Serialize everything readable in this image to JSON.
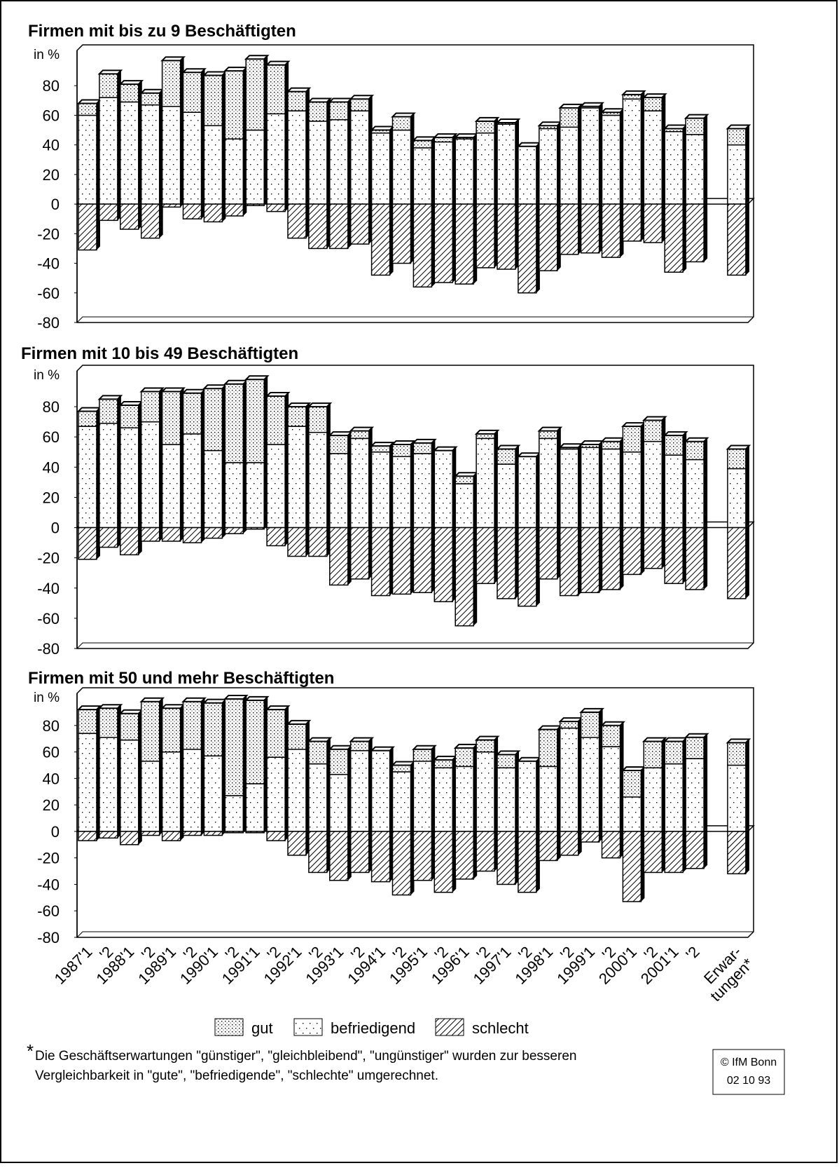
{
  "chart_data": [
    {
      "type": "bar",
      "stacked": true,
      "title": "Firmen mit bis zu 9 Beschäftigten",
      "ylabel": "in %",
      "ylim": [
        -80,
        100
      ],
      "yticks": [
        -80,
        -60,
        -40,
        -20,
        0,
        20,
        40,
        60,
        80
      ],
      "series": [
        {
          "pattern": "sparse-dots",
          "values": [
            60,
            72,
            69,
            67,
            66,
            62,
            53,
            44,
            50,
            61,
            63,
            56,
            57,
            63,
            48,
            50,
            38,
            42,
            44,
            48,
            54,
            39,
            51,
            52,
            65,
            60,
            71,
            63,
            49,
            47,
            40
          ]
        },
        {
          "pattern": "dense-dots",
          "values": [
            8,
            16,
            12,
            8,
            31,
            27,
            34,
            46,
            48,
            33,
            13,
            13,
            12,
            8,
            2,
            9,
            5,
            3,
            1,
            8,
            1,
            0,
            2,
            13,
            1,
            2,
            3,
            9,
            2,
            11,
            11
          ]
        },
        {
          "pattern": "hatch",
          "values": [
            -31,
            -11,
            -17,
            -23,
            -2,
            -10,
            -12,
            -8,
            -1,
            -5,
            -23,
            -30,
            -30,
            -27,
            -48,
            -40,
            -56,
            -53,
            -54,
            -43,
            -44,
            -60,
            -45,
            -34,
            -33,
            -36,
            -25,
            -26,
            -46,
            -39,
            -48
          ]
        }
      ]
    },
    {
      "type": "bar",
      "stacked": true,
      "title": "Firmen mit 10 bis 49 Beschäftigten",
      "ylabel": "in %",
      "ylim": [
        -80,
        100
      ],
      "yticks": [
        -80,
        -60,
        -40,
        -20,
        0,
        20,
        40,
        60,
        80
      ],
      "series": [
        {
          "pattern": "sparse-dots",
          "values": [
            67,
            69,
            66,
            70,
            55,
            62,
            51,
            43,
            43,
            55,
            67,
            63,
            49,
            59,
            50,
            47,
            49,
            51,
            29,
            59,
            42,
            47,
            59,
            52,
            53,
            52,
            50,
            57,
            48,
            45,
            39
          ]
        },
        {
          "pattern": "dense-dots",
          "values": [
            10,
            16,
            15,
            20,
            35,
            27,
            41,
            52,
            55,
            32,
            13,
            17,
            12,
            5,
            4,
            8,
            7,
            0,
            5,
            3,
            10,
            0,
            5,
            1,
            2,
            5,
            17,
            14,
            13,
            12,
            13
          ]
        },
        {
          "pattern": "hatch",
          "values": [
            -21,
            -13,
            -18,
            -9,
            -9,
            -10,
            -7,
            -4,
            -1,
            -12,
            -19,
            -19,
            -38,
            -34,
            -45,
            -44,
            -43,
            -49,
            -65,
            -37,
            -47,
            -52,
            -34,
            -45,
            -43,
            -41,
            -31,
            -27,
            -37,
            -41,
            -47
          ]
        }
      ]
    },
    {
      "type": "bar",
      "stacked": true,
      "title": "Firmen mit 50 und mehr Beschäftigten",
      "ylabel": "in %",
      "ylim": [
        -80,
        100
      ],
      "yticks": [
        -80,
        -60,
        -40,
        -20,
        0,
        20,
        40,
        60,
        80
      ],
      "categories": [
        "1987'1",
        "'2",
        "1988'1",
        "'2",
        "1989'1",
        "'2",
        "1990'1",
        "'2",
        "1991'1",
        "'2",
        "1992'1",
        "'2",
        "1993'1",
        "'2",
        "1994'1",
        "'2",
        "1995'1",
        "'2",
        "1996'1",
        "'2",
        "1997'1",
        "'2",
        "1998'1",
        "'2",
        "1999'1",
        "'2",
        "2000'1",
        "'2",
        "2001'1",
        "'2",
        "Erwar-\ntungen*"
      ],
      "series": [
        {
          "name": "befriedigend",
          "pattern": "sparse-dots",
          "values": [
            74,
            71,
            69,
            53,
            60,
            62,
            57,
            27,
            36,
            56,
            62,
            51,
            43,
            61,
            61,
            45,
            53,
            48,
            49,
            60,
            48,
            53,
            49,
            78,
            71,
            64,
            26,
            48,
            51,
            55,
            50
          ]
        },
        {
          "name": "gut",
          "pattern": "dense-dots",
          "values": [
            18,
            22,
            20,
            45,
            33,
            36,
            40,
            73,
            63,
            36,
            19,
            17,
            19,
            7,
            0,
            5,
            9,
            6,
            14,
            9,
            10,
            0,
            28,
            5,
            19,
            16,
            20,
            20,
            17,
            16,
            17
          ]
        },
        {
          "name": "schlecht",
          "pattern": "hatch",
          "values": [
            -7,
            -5,
            -10,
            -3,
            -7,
            -3,
            -3,
            -1,
            -1,
            -7,
            -18,
            -31,
            -37,
            -31,
            -38,
            -48,
            -37,
            -46,
            -36,
            -30,
            -40,
            -46,
            -22,
            -18,
            -8,
            -20,
            -53,
            -31,
            -31,
            -28,
            -32
          ]
        }
      ],
      "legend_order": [
        1,
        0,
        2
      ]
    }
  ],
  "footnote": {
    "marker": "*",
    "lines": [
      "Die Geschäftserwartungen \"günstiger\", \"gleichbleibend\", \"ungünstiger\" wurden zur besseren",
      "Vergleichbarkeit in \"gute\", \"befriedigende\", \"schlechte\" umgerechnet."
    ]
  },
  "source": [
    "© IfM Bonn",
    "02 10 93"
  ]
}
